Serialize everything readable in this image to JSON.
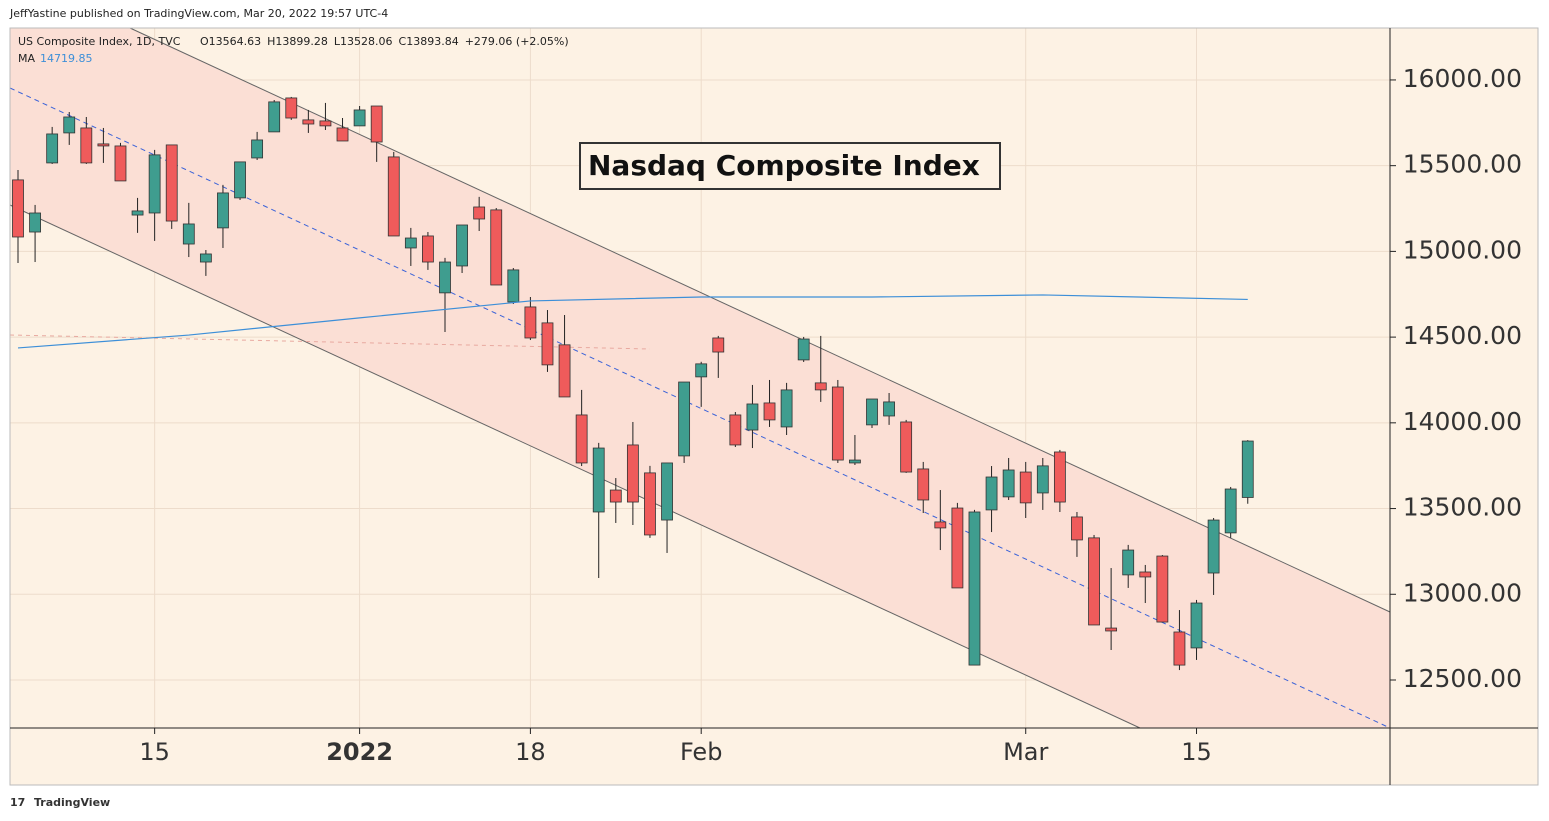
{
  "chart_data": {
    "type": "candlestick",
    "title": "Nasdaq Composite Index",
    "publisher_note": "JeffYastine published on TradingView.com, Mar 20, 2022 19:57 UTC-4",
    "legend_symbol": "US Composite Index, 1D, TVC",
    "legend_ohlc": [
      "O13564.63",
      "H13899.28",
      "L13528.06",
      "C13893.84",
      "+279.06 (+2.05%)"
    ],
    "ma_label": "MA",
    "ma_value": 14719.85,
    "footer": "TradingView",
    "categories": [
      null,
      null,
      null,
      null,
      null,
      null,
      null,
      null,
      "15",
      null,
      null,
      null,
      null,
      null,
      null,
      null,
      null,
      null,
      null,
      null,
      "2022",
      null,
      null,
      null,
      null,
      null,
      null,
      null,
      null,
      null,
      "18",
      null,
      null,
      null,
      null,
      null,
      null,
      null,
      null,
      null,
      "Feb",
      null,
      null,
      null,
      null,
      null,
      null,
      null,
      null,
      null,
      null,
      null,
      null,
      null,
      null,
      null,
      null,
      null,
      null,
      "Mar",
      null,
      null,
      null,
      null,
      null,
      null,
      null,
      null,
      null,
      "15",
      null,
      null,
      null
    ],
    "open": [
      15417,
      15113,
      15516,
      15691,
      15720,
      15627,
      15615,
      15212,
      15224,
      15621,
      15043,
      14938,
      15137,
      15312,
      15545,
      15697,
      15895,
      15767,
      15761,
      15720,
      15732,
      15848,
      15551,
      15020,
      15090,
      14758,
      14915,
      15259,
      15242,
      14705,
      14676,
      14583,
      14455,
      14046,
      13480,
      13608,
      13871,
      13708,
      13433,
      13807,
      14268,
      14495,
      14046,
      13958,
      14116,
      13976,
      14367,
      14233,
      14209,
      13766,
      13988,
      14040,
      14005,
      13731,
      13422,
      13503,
      12587,
      13492,
      13568,
      13713,
      13591,
      13830,
      13451,
      13329,
      12803,
      13113,
      13130,
      13223,
      12780,
      12687,
      13124,
      13358,
      13564.63
    ],
    "high": [
      15475,
      15271,
      15726,
      15813,
      15784,
      15720,
      15633,
      15312,
      15592,
      15621,
      15283,
      15008,
      15388,
      15522,
      15697,
      15883,
      15901,
      15825,
      15866,
      15778,
      15848,
      15848,
      15580,
      15137,
      15113,
      14962,
      15154,
      15318,
      15253,
      14903,
      14734,
      14658,
      14629,
      14192,
      13883,
      13678,
      14005,
      13749,
      13766,
      14238,
      14356,
      14507,
      14063,
      14221,
      14250,
      14233,
      14501,
      14507,
      14250,
      13929,
      14139,
      14174,
      14017,
      13772,
      13608,
      13533,
      13492,
      13748,
      13795,
      13772,
      13795,
      13842,
      13480,
      13346,
      13153,
      13288,
      13171,
      13229,
      12908,
      12967,
      13445,
      13626,
      13899.28
    ],
    "low": [
      14932,
      14938,
      15510,
      15621,
      15510,
      15516,
      15411,
      15108,
      15061,
      15131,
      14967,
      14857,
      15020,
      15300,
      15533,
      15697,
      15767,
      15691,
      15708,
      15644,
      15732,
      15522,
      15090,
      14915,
      14892,
      14530,
      14874,
      15119,
      14804,
      14693,
      14483,
      14297,
      14151,
      13748,
      13095,
      13416,
      13404,
      13329,
      13241,
      13766,
      14093,
      14262,
      13859,
      13853,
      13976,
      13929,
      14355,
      14122,
      13766,
      13754,
      13970,
      13988,
      13708,
      13474,
      13258,
      13037,
      12587,
      13363,
      13550,
      13445,
      13492,
      13480,
      13218,
      12821,
      12675,
      13037,
      12949,
      12838,
      12558,
      12617,
      12996,
      13329,
      13528.06
    ],
    "close": [
      15084,
      15224,
      15685,
      15784,
      15516,
      15615,
      15411,
      15236,
      15563,
      15177,
      15160,
      14985,
      15341,
      15522,
      15650,
      15872,
      15778,
      15743,
      15732,
      15644,
      15825,
      15638,
      15090,
      15078,
      14938,
      14938,
      15154,
      15189,
      14804,
      14892,
      14495,
      14338,
      14151,
      13766,
      13853,
      13538,
      13538,
      13346,
      13766,
      14238,
      14344,
      14413,
      13871,
      14110,
      14017,
      14192,
      14489,
      14192,
      13783,
      13783,
      14139,
      14122,
      13713,
      13550,
      13387,
      13037,
      13480,
      13684,
      13725,
      13533,
      13749,
      13538,
      13317,
      12821,
      12786,
      13258,
      13101,
      12838,
      12587,
      12949,
      13433,
      13614,
      13893.84
    ],
    "up_color": "#3f9d8f",
    "down_color": "#ef5b5b",
    "ma": {
      "color": "#3d8fd8",
      "x": [
        0,
        10,
        20,
        30,
        40,
        50,
        60,
        72
      ],
      "values": [
        14437,
        14512,
        14612,
        14711,
        14734,
        14734,
        14746,
        14719.85
      ]
    },
    "ylim": [
      12220,
      16303
    ],
    "yticks": [
      {
        "value": 12500,
        "label": "12500.00"
      },
      {
        "value": 13000,
        "label": "13000.00"
      },
      {
        "value": 13500,
        "label": "13500.00"
      },
      {
        "value": 14000,
        "label": "14000.00"
      },
      {
        "value": 14500,
        "label": "14500.00"
      },
      {
        "value": 15000,
        "label": "15000.00"
      },
      {
        "value": 15500,
        "label": "15500.00"
      },
      {
        "value": 16000,
        "label": "16000.00"
      }
    ],
    "grid": true
  }
}
